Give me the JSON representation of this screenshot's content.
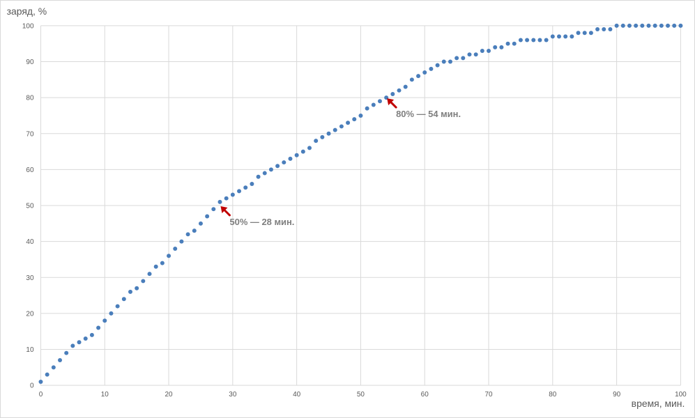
{
  "chart_data": {
    "type": "scatter",
    "title": "",
    "xlabel": "время, мин.",
    "ylabel": "заряд, %",
    "xlim": [
      0,
      100
    ],
    "ylim": [
      0,
      100
    ],
    "xticks": [
      0,
      10,
      20,
      30,
      40,
      50,
      60,
      70,
      80,
      90,
      100
    ],
    "yticks": [
      0,
      10,
      20,
      30,
      40,
      50,
      60,
      70,
      80,
      90,
      100
    ],
    "grid": true,
    "legend": "none",
    "colors": {
      "points": "#4a7ebb",
      "grid": "#d9d9d9",
      "annotation_arrow": "#c00000"
    },
    "series": [
      {
        "x": [
          0,
          1,
          2,
          3,
          4,
          5,
          6,
          7,
          8,
          9,
          10,
          11,
          12,
          13,
          14,
          15,
          16,
          17,
          18,
          19,
          20,
          21,
          22,
          23,
          24,
          25,
          26,
          27,
          28,
          29,
          30,
          31,
          32,
          33,
          34,
          35,
          36,
          37,
          38,
          39,
          40,
          41,
          42,
          43,
          44,
          45,
          46,
          47,
          48,
          49,
          50,
          51,
          52,
          53,
          54,
          55,
          56,
          57,
          58,
          59,
          60,
          61,
          62,
          63,
          64,
          65,
          66,
          67,
          68,
          69,
          70,
          71,
          72,
          73,
          74,
          75,
          76,
          77,
          78,
          79,
          80,
          81,
          82,
          83,
          84,
          85,
          86,
          87,
          88,
          89,
          90,
          91,
          92,
          93,
          94,
          95,
          96,
          97,
          98,
          99,
          100
        ],
        "y": [
          1,
          3,
          5,
          7,
          9,
          11,
          12,
          13,
          14,
          16,
          18,
          20,
          22,
          24,
          26,
          27,
          29,
          31,
          33,
          34,
          36,
          38,
          40,
          42,
          43,
          45,
          47,
          49,
          51,
          52,
          53,
          54,
          55,
          56,
          58,
          59,
          60,
          61,
          62,
          63,
          64,
          65,
          66,
          68,
          69,
          70,
          71,
          72,
          73,
          74,
          75,
          77,
          78,
          79,
          80,
          81,
          82,
          83,
          85,
          86,
          87,
          88,
          89,
          90,
          90,
          91,
          91,
          92,
          92,
          93,
          93,
          94,
          94,
          95,
          95,
          96,
          96,
          96,
          96,
          96,
          97,
          97,
          97,
          97,
          98,
          98,
          98,
          99,
          99,
          99,
          100,
          100,
          100,
          100,
          100,
          100,
          100,
          100,
          100,
          100,
          100
        ]
      }
    ],
    "annotations": [
      {
        "x": 28,
        "y": 50,
        "text": "50% — 28 мин."
      },
      {
        "x": 54,
        "y": 80,
        "text": "80% — 54 мин."
      }
    ]
  }
}
